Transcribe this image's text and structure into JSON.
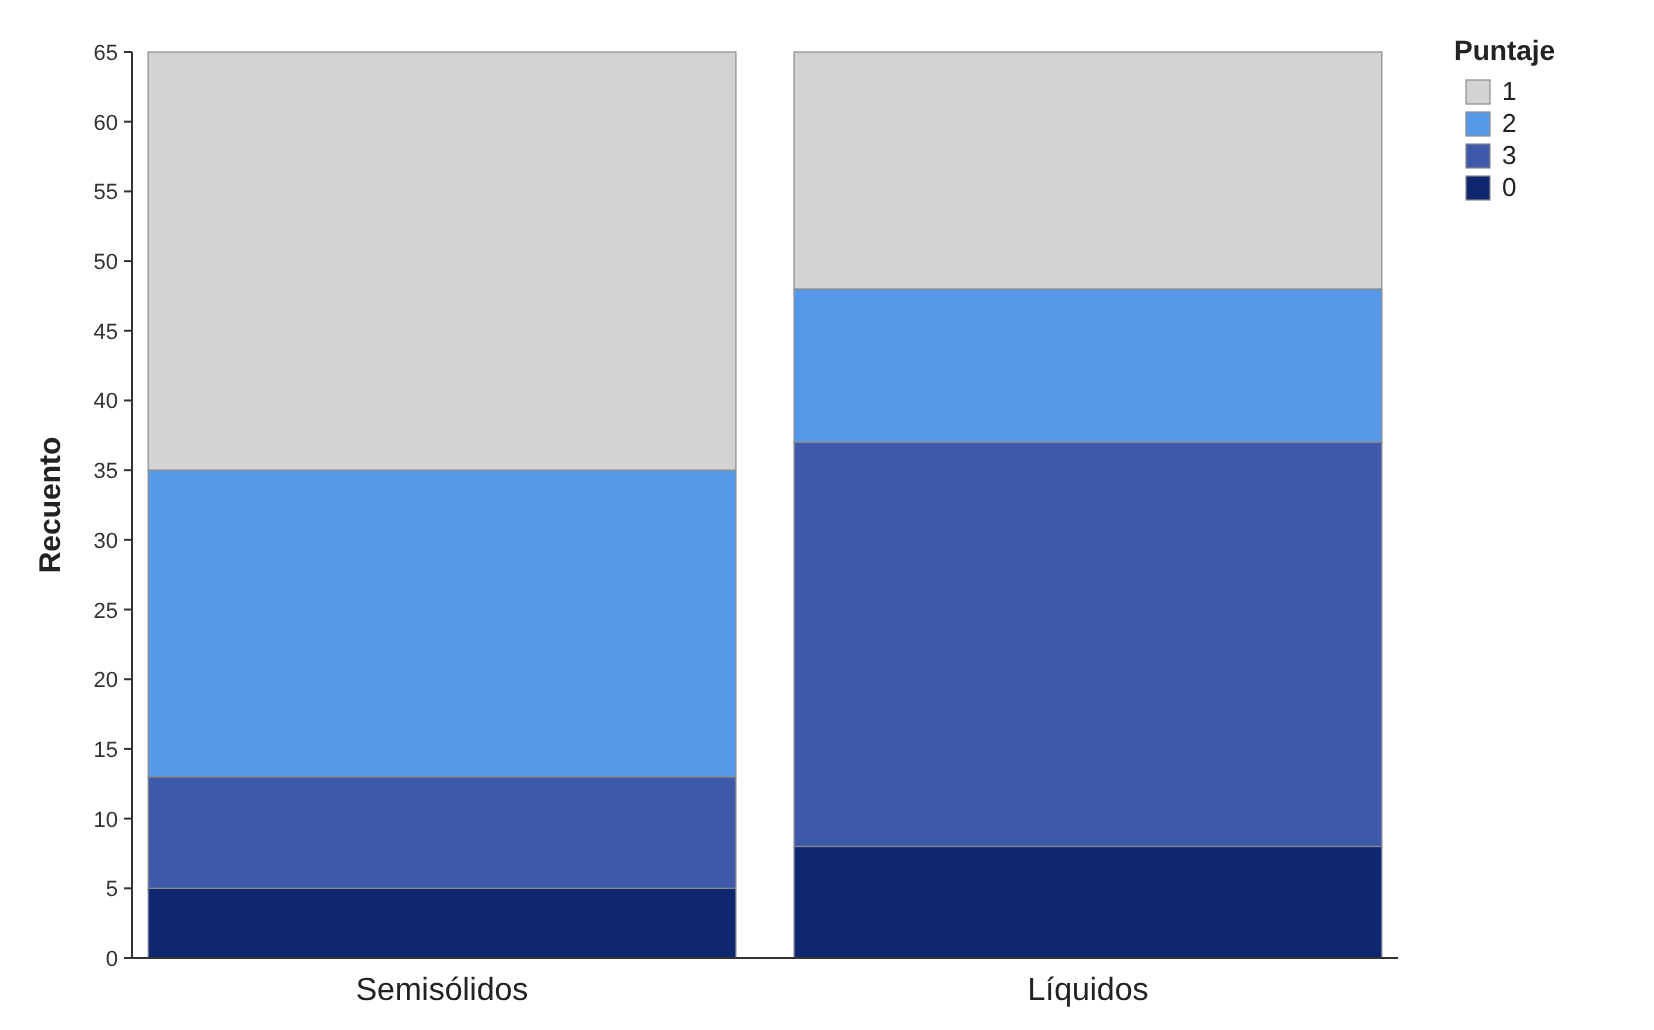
{
  "chart_data": {
    "type": "bar",
    "stacked": true,
    "categories": [
      "Semisólidos",
      "Líquidos"
    ],
    "ylabel": "Recuento",
    "legend_title": "Puntaje",
    "legend": "top right",
    "grid": false,
    "ylim": [
      0,
      65
    ],
    "yticks": [
      0,
      5,
      10,
      15,
      20,
      25,
      30,
      35,
      40,
      45,
      50,
      55,
      60,
      65
    ],
    "series": [
      {
        "name": "0",
        "color": "#0f2670",
        "values": [
          5,
          8
        ]
      },
      {
        "name": "3",
        "color": "#3f5aab",
        "values": [
          8,
          29
        ]
      },
      {
        "name": "2",
        "color": "#5599e8",
        "values": [
          22,
          11
        ]
      },
      {
        "name": "1",
        "color": "#d3d3d3",
        "values": [
          30,
          17
        ]
      }
    ]
  }
}
